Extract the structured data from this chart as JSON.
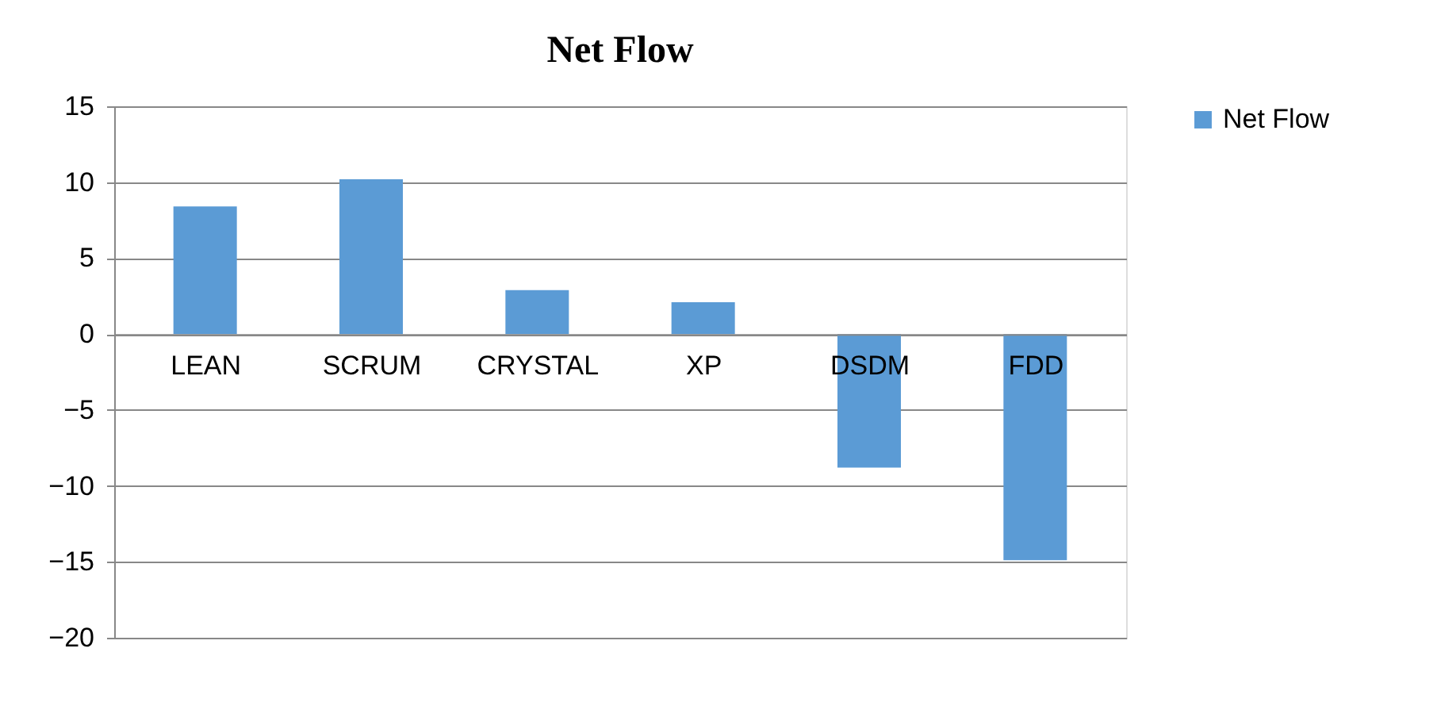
{
  "chart_data": {
    "type": "bar",
    "title": "Net Flow",
    "categories": [
      "LEAN",
      "SCRUM",
      "CRYSTAL",
      "XP",
      "DSDM",
      "FDD"
    ],
    "series": [
      {
        "name": "Net Flow",
        "color": "#5b9bd5",
        "values": [
          8.4,
          10.2,
          2.9,
          2.1,
          -8.8,
          -14.9
        ]
      }
    ],
    "ylim": [
      -20,
      15
    ],
    "yticks": [
      -20,
      -15,
      -10,
      -5,
      0,
      5,
      10,
      15
    ],
    "grid": "y",
    "legend": "right"
  }
}
